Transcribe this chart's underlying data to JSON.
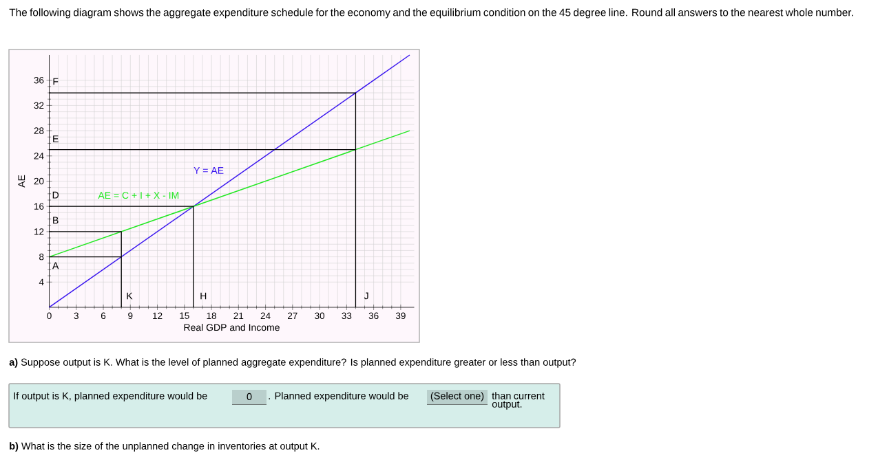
{
  "chart_data": {
    "type": "line",
    "title": "The following diagram shows the aggregate expenditure schedule for the economy and the equilibrium condition on the 45 degree line. Round all answers to the nearest whole number.",
    "xlabel": "Real GDP and Income",
    "ylabel": "AE",
    "xlim": [
      0,
      40.5
    ],
    "ylim": [
      0,
      40
    ],
    "xticks": [
      0,
      3,
      6,
      9,
      12,
      15,
      18,
      21,
      24,
      27,
      30,
      33,
      36,
      39
    ],
    "yticks": [
      4,
      8,
      12,
      16,
      20,
      24,
      28,
      32,
      36
    ],
    "grid": true,
    "marker": "none",
    "line_style": "solid",
    "series": [
      {
        "name": "Y = AE",
        "color": "#3b17ef",
        "x": [
          0,
          40
        ],
        "values": [
          0,
          40
        ]
      },
      {
        "name": "AE = C + I + X - IM",
        "color": "#22e822",
        "x": [
          0,
          40
        ],
        "values": [
          8,
          28
        ]
      },
      {
        "color": "#000000",
        "x": [
          0,
          34,
          34
        ],
        "values": [
          34,
          34,
          0
        ]
      },
      {
        "color": "#000000",
        "x": [
          0,
          34
        ],
        "values": [
          25,
          25
        ]
      },
      {
        "color": "#000000",
        "x": [
          0,
          16,
          16
        ],
        "values": [
          16,
          16,
          0
        ]
      },
      {
        "color": "#000000",
        "x": [
          0,
          8,
          8
        ],
        "values": [
          12,
          12,
          0
        ]
      },
      {
        "color": "#000000",
        "x": [
          0,
          8
        ],
        "values": [
          8,
          8
        ]
      }
    ],
    "annotations": [
      "A",
      "B",
      "D",
      "E",
      "F",
      "K",
      "H",
      "J",
      "**a)** Suppose output is K. What is the level of planned aggregate expenditure? Is planned expenditure greater or less than output?",
      "If output is K, planned expenditure would be",
      "0",
      ". Planned expenditure would be",
      "(Select one)",
      "than current output.",
      "**b)** What is the size of the unplanned change in inventories at output K."
    ]
  }
}
